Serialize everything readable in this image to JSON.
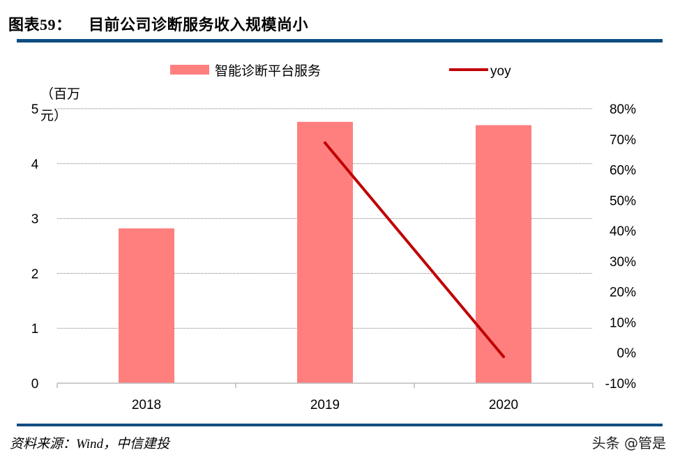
{
  "header": {
    "title_prefix": "图表59：",
    "title": "目前公司诊断服务收入规模尚小"
  },
  "footer": {
    "source": "资料来源：Wind，中信建投",
    "watermark": "头条 @管是"
  },
  "chart_data": {
    "type": "bar+line",
    "categories": [
      "2018",
      "2019",
      "2020"
    ],
    "left_axis": {
      "label": "（百万元）",
      "ylim": [
        0,
        5
      ],
      "ticks": [
        "0",
        "1",
        "2",
        "3",
        "4",
        "5"
      ]
    },
    "right_axis": {
      "ylim": [
        -10,
        80
      ],
      "ticks": [
        "-10%",
        "0%",
        "10%",
        "20%",
        "30%",
        "40%",
        "50%",
        "60%",
        "70%",
        "80%"
      ]
    },
    "series": [
      {
        "name": "智能诊断平台服务",
        "type": "bar",
        "axis": "left",
        "color": "#ff7f7f",
        "values": [
          2.82,
          4.76,
          4.7
        ]
      },
      {
        "name": "yoy",
        "type": "line",
        "axis": "right",
        "color": "#c00000",
        "values": [
          null,
          68.8,
          -1.3
        ]
      }
    ],
    "grid": true,
    "legend": "top"
  }
}
